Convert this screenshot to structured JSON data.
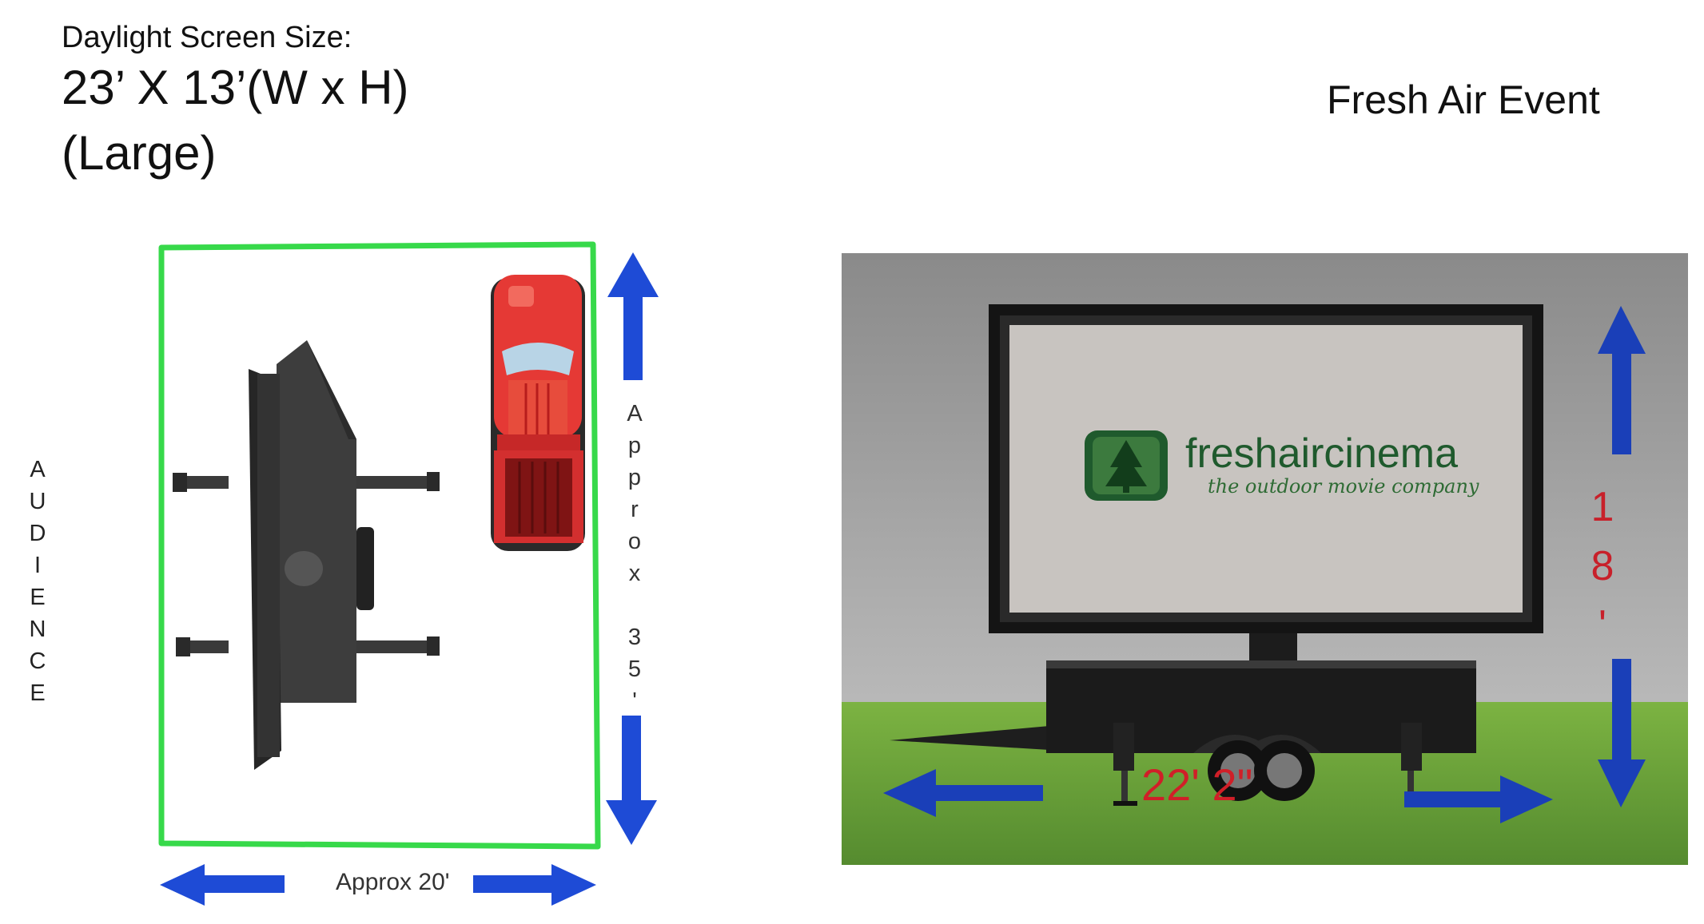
{
  "header": {
    "label": "Daylight Screen Size:",
    "size": "23’ X 13’(W x H)",
    "class": "(Large)"
  },
  "event_title": "Fresh Air Event",
  "top_view": {
    "side_label": [
      "A",
      "U",
      "D",
      "I",
      "E",
      "N",
      "C",
      "E"
    ],
    "depth_label": [
      "A",
      "p",
      "p",
      "r",
      "o",
      "x",
      "",
      "3",
      "5",
      "'"
    ],
    "width_label": "Approx 20'",
    "area_border_color": "#37d94a",
    "arrow_color": "#1e4bd6",
    "truck_color": "#e53935"
  },
  "render_view": {
    "logo_brand": "freshaircinema",
    "logo_tagline": "the outdoor movie company",
    "height_label": [
      "1",
      "8",
      "'"
    ],
    "width_label": "22' 2\"",
    "label_color": "#d01f28",
    "arrow_color": "#1a3fb8"
  }
}
